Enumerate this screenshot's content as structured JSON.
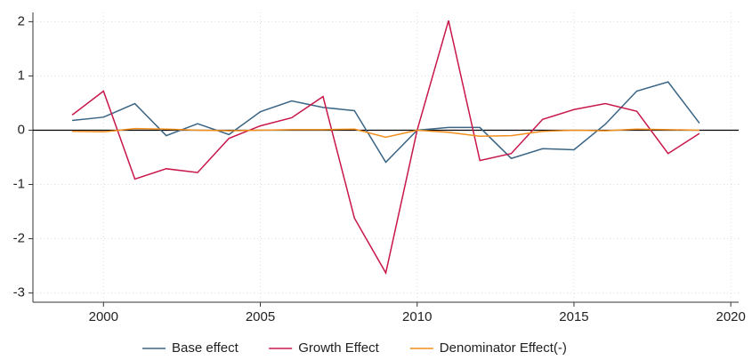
{
  "chart_data": {
    "type": "line",
    "x": [
      1999,
      2000,
      2001,
      2002,
      2003,
      2004,
      2005,
      2006,
      2007,
      2008,
      2009,
      2010,
      2011,
      2012,
      2013,
      2014,
      2015,
      2016,
      2017,
      2018,
      2019
    ],
    "series": [
      {
        "name": "Base effect",
        "color": "#3b6585",
        "values": [
          0.18,
          0.24,
          0.49,
          -0.1,
          0.12,
          -0.08,
          0.34,
          0.54,
          0.42,
          0.36,
          -0.59,
          0,
          0.05,
          0.05,
          -0.52,
          -0.34,
          -0.36,
          0.11,
          0.72,
          0.89,
          0.13
        ]
      },
      {
        "name": "Growth Effect",
        "color": "#c8174a",
        "values": [
          0.28,
          0.72,
          -0.9,
          -0.71,
          -0.78,
          -0.15,
          0.08,
          0.23,
          0.62,
          -1.62,
          -2.63,
          0,
          2.02,
          -0.56,
          -0.43,
          0.2,
          0.38,
          0.49,
          0.35,
          -0.43,
          -0.06
        ]
      },
      {
        "name": "Denominator Effect(-)",
        "color": "#f28e1c",
        "values": [
          -0.02,
          -0.03,
          0.03,
          0.02,
          0.0,
          -0.01,
          0.0,
          0.01,
          0.01,
          0.02,
          -0.13,
          0.0,
          -0.04,
          -0.11,
          -0.1,
          -0.02,
          0.0,
          -0.01,
          0.02,
          0.01,
          0.0
        ]
      }
    ],
    "xlim": [
      1997.75,
      2020.25
    ],
    "xticks": [
      2000,
      2005,
      2010,
      2015,
      2020
    ],
    "ylim": [
      -3.17,
      2.17
    ],
    "yticks": [
      -3,
      -2,
      -1,
      0,
      1,
      2
    ],
    "reference_line": 0,
    "grid": true,
    "legend": "bottom"
  }
}
